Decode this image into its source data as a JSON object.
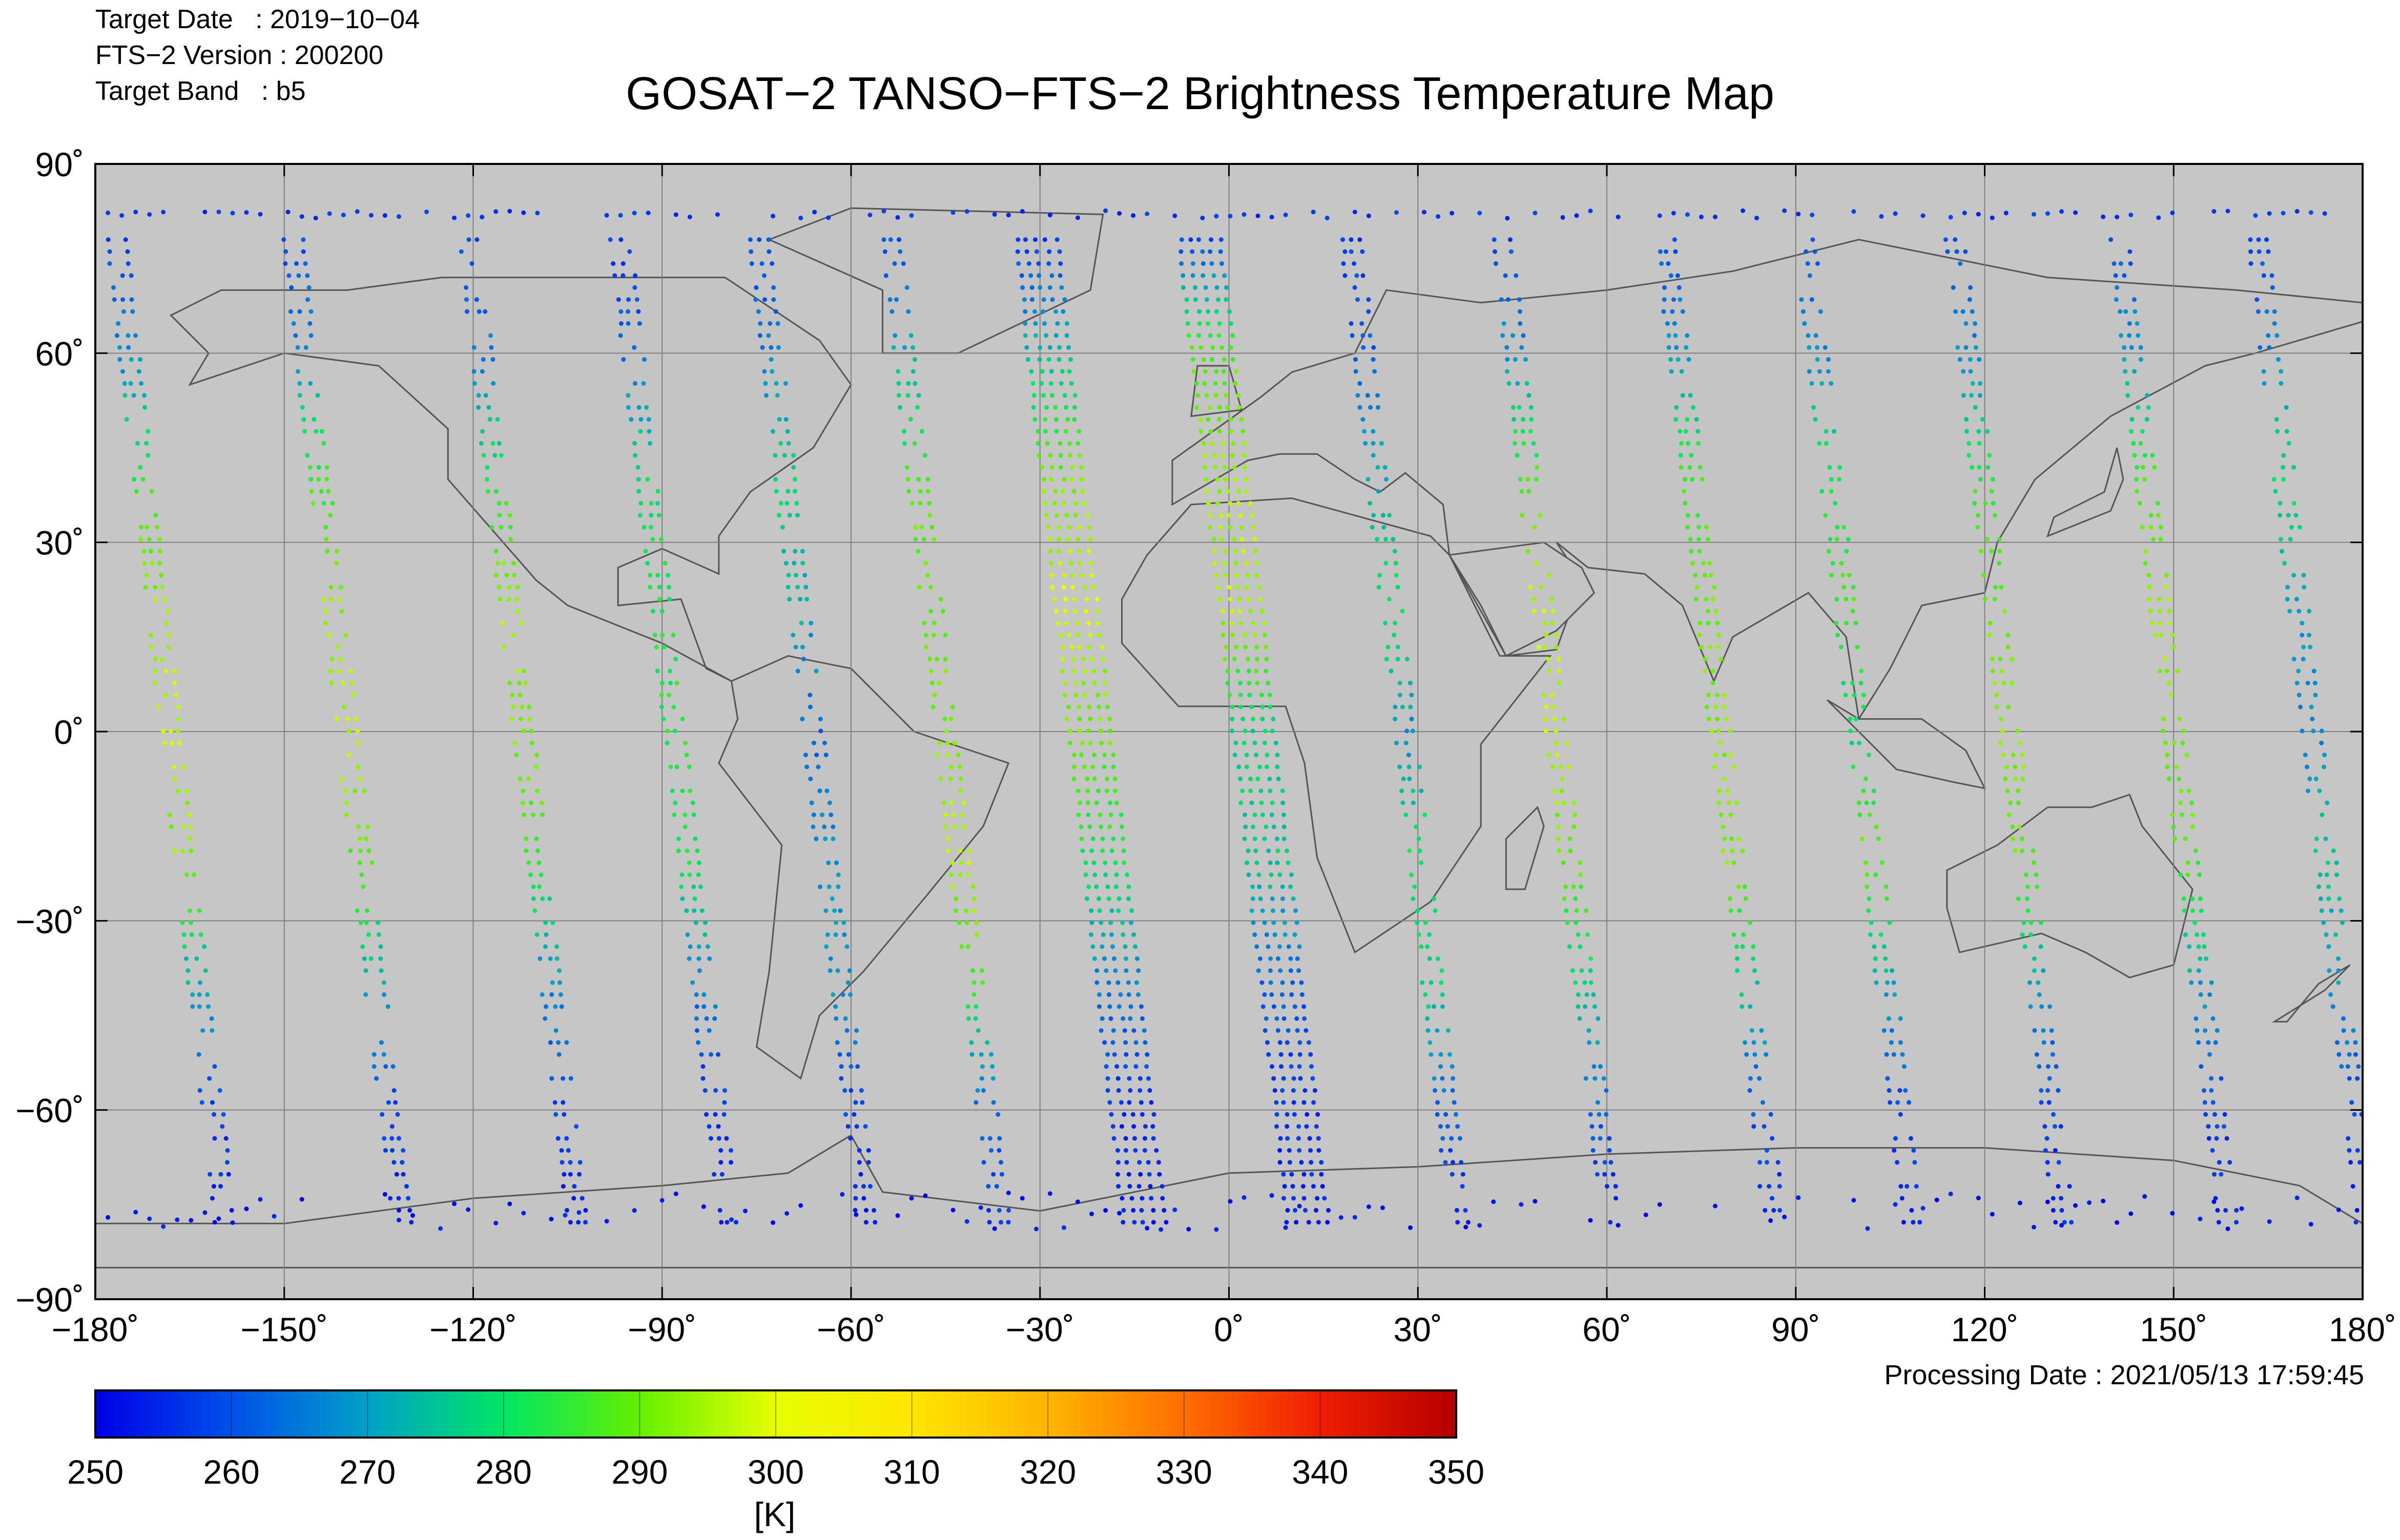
{
  "meta": {
    "target_date": "Target Date   : 2019−10−04",
    "fts_version": "FTS−2 Version : 200200",
    "target_band": "Target Band   : b5"
  },
  "title": "GOSAT−2 TANSO−FTS−2 Brightness Temperature Map",
  "processing_date": "Processing Date : 2021/05/13 17:59:45",
  "map": {
    "projection": "equirectangular",
    "lon_range": [
      -180,
      180
    ],
    "lat_range": [
      -90,
      90
    ],
    "ocean_color": "#c6c6c6",
    "grid_color": "#7f7f7f",
    "coast_color": "#555555",
    "x_ticks": [
      "−180˚",
      "−150˚",
      "−120˚",
      "−90˚",
      "−60˚",
      "−30˚",
      "0˚",
      "30˚",
      "60˚",
      "90˚",
      "120˚",
      "150˚",
      "180˚"
    ],
    "x_tick_values": [
      -180,
      -150,
      -120,
      -90,
      -60,
      -30,
      0,
      30,
      60,
      90,
      120,
      150,
      180
    ],
    "y_ticks": [
      "90˚",
      "60˚",
      "30˚",
      "0˚",
      "−30˚",
      "−60˚",
      "−90˚"
    ],
    "y_tick_values": [
      90,
      60,
      30,
      0,
      -30,
      -60,
      -90
    ]
  },
  "colorbar": {
    "min": 250,
    "max": 350,
    "tick_labels": [
      "250",
      "260",
      "270",
      "280",
      "290",
      "300",
      "310",
      "320",
      "330",
      "340",
      "350"
    ],
    "unit": "[K]",
    "colors": [
      "#0000e6",
      "#0050ea",
      "#00a0c8",
      "#00e664",
      "#64f000",
      "#e6ff00",
      "#ffe600",
      "#ffb400",
      "#ff6e00",
      "#f01e00",
      "#b40000"
    ]
  },
  "chart_data": {
    "type": "scatter",
    "x_axis": "longitude",
    "y_axis": "latitude",
    "value": "brightness temperature",
    "value_unit": "K",
    "value_range": [
      250,
      350
    ],
    "tracks": [
      {
        "lon_at_equator": -168,
        "temperature_profile": [
          [
            80,
            258
          ],
          [
            60,
            268
          ],
          [
            40,
            284
          ],
          [
            20,
            294
          ],
          [
            0,
            297
          ],
          [
            -20,
            292
          ],
          [
            -40,
            272
          ],
          [
            -60,
            258
          ],
          [
            -80,
            254
          ]
        ]
      },
      {
        "lon_at_equator": -140,
        "temperature_profile": [
          [
            80,
            258
          ],
          [
            60,
            268
          ],
          [
            40,
            286
          ],
          [
            20,
            293
          ],
          [
            0,
            296
          ],
          [
            -20,
            288
          ],
          [
            -40,
            272
          ],
          [
            -60,
            258
          ],
          [
            -80,
            254
          ]
        ]
      },
      {
        "lon_at_equator": -112,
        "temperature_profile": [
          [
            80,
            258
          ],
          [
            60,
            266
          ],
          [
            40,
            283
          ],
          [
            20,
            294
          ],
          [
            0,
            292
          ],
          [
            -20,
            286
          ],
          [
            -40,
            268
          ],
          [
            -60,
            258
          ],
          [
            -80,
            254
          ]
        ]
      },
      {
        "lon_at_equator": -88,
        "temperature_profile": [
          [
            80,
            256
          ],
          [
            60,
            264
          ],
          [
            40,
            280
          ],
          [
            20,
            282
          ],
          [
            0,
            284
          ],
          [
            -20,
            282
          ],
          [
            -40,
            266
          ],
          [
            -60,
            256
          ],
          [
            -80,
            254
          ]
        ]
      },
      {
        "lon_at_equator": -66,
        "temperature_profile": [
          [
            80,
            258
          ],
          [
            60,
            266
          ],
          [
            40,
            280
          ],
          [
            20,
            272
          ],
          [
            0,
            262
          ],
          [
            -20,
            268
          ],
          [
            -40,
            270
          ],
          [
            -60,
            258
          ],
          [
            -80,
            254
          ]
        ]
      },
      {
        "lon_at_equator": -45,
        "temperature_profile": [
          [
            80,
            258
          ],
          [
            60,
            272
          ],
          [
            40,
            288
          ],
          [
            20,
            290
          ],
          [
            0,
            292
          ],
          [
            -20,
            296
          ],
          [
            -40,
            286
          ],
          [
            -60,
            262
          ],
          [
            -80,
            256
          ]
        ]
      },
      {
        "lon_at_equator": -22,
        "temperature_profile": [
          [
            80,
            256
          ],
          [
            60,
            274
          ],
          [
            40,
            292
          ],
          [
            20,
            298
          ],
          [
            0,
            290
          ],
          [
            -20,
            282
          ],
          [
            -40,
            266
          ],
          [
            -60,
            256
          ],
          [
            -80,
            254
          ]
        ]
      },
      {
        "lon_at_equator": 4,
        "temperature_profile": [
          [
            80,
            256
          ],
          [
            60,
            288
          ],
          [
            40,
            294
          ],
          [
            20,
            296
          ],
          [
            0,
            278
          ],
          [
            -20,
            276
          ],
          [
            -40,
            262
          ],
          [
            -60,
            256
          ],
          [
            -80,
            254
          ]
        ]
      },
      {
        "lon_at_equator": 28,
        "temperature_profile": [
          [
            80,
            256
          ],
          [
            60,
            262
          ],
          [
            40,
            272
          ],
          [
            20,
            282
          ],
          [
            0,
            268
          ],
          [
            -20,
            282
          ],
          [
            -40,
            278
          ],
          [
            -60,
            262
          ],
          [
            -80,
            254
          ]
        ]
      },
      {
        "lon_at_equator": 52,
        "temperature_profile": [
          [
            80,
            258
          ],
          [
            60,
            268
          ],
          [
            40,
            288
          ],
          [
            20,
            296
          ],
          [
            0,
            296
          ],
          [
            -20,
            290
          ],
          [
            -40,
            278
          ],
          [
            -60,
            262
          ],
          [
            -80,
            254
          ]
        ]
      },
      {
        "lon_at_equator": 78,
        "temperature_profile": [
          [
            80,
            258
          ],
          [
            60,
            270
          ],
          [
            40,
            286
          ],
          [
            20,
            290
          ],
          [
            0,
            292
          ],
          [
            -20,
            292
          ],
          [
            -40,
            276
          ],
          [
            -60,
            260
          ],
          [
            -80,
            254
          ]
        ]
      },
      {
        "lon_at_equator": 100,
        "temperature_profile": [
          [
            80,
            258
          ],
          [
            60,
            268
          ],
          [
            40,
            282
          ],
          [
            20,
            286
          ],
          [
            0,
            278
          ],
          [
            -20,
            290
          ],
          [
            -40,
            272
          ],
          [
            -60,
            258
          ],
          [
            -80,
            254
          ]
        ]
      },
      {
        "lon_at_equator": 124,
        "temperature_profile": [
          [
            80,
            258
          ],
          [
            60,
            268
          ],
          [
            40,
            284
          ],
          [
            20,
            290
          ],
          [
            0,
            292
          ],
          [
            -20,
            290
          ],
          [
            -40,
            270
          ],
          [
            -60,
            258
          ],
          [
            -80,
            254
          ]
        ]
      },
      {
        "lon_at_equator": 150,
        "temperature_profile": [
          [
            80,
            258
          ],
          [
            60,
            270
          ],
          [
            40,
            286
          ],
          [
            20,
            294
          ],
          [
            0,
            290
          ],
          [
            -20,
            288
          ],
          [
            -40,
            270
          ],
          [
            -60,
            258
          ],
          [
            -80,
            254
          ]
        ]
      },
      {
        "lon_at_equator": 172,
        "temperature_profile": [
          [
            80,
            258
          ],
          [
            60,
            266
          ],
          [
            40,
            280
          ],
          [
            20,
            272
          ],
          [
            0,
            266
          ],
          [
            -20,
            276
          ],
          [
            -40,
            270
          ],
          [
            -60,
            258
          ],
          [
            -80,
            254
          ]
        ]
      }
    ],
    "polar_band": [
      {
        "lat": 82,
        "temperature": 257
      },
      {
        "lat": -76,
        "temperature": 253
      }
    ]
  }
}
